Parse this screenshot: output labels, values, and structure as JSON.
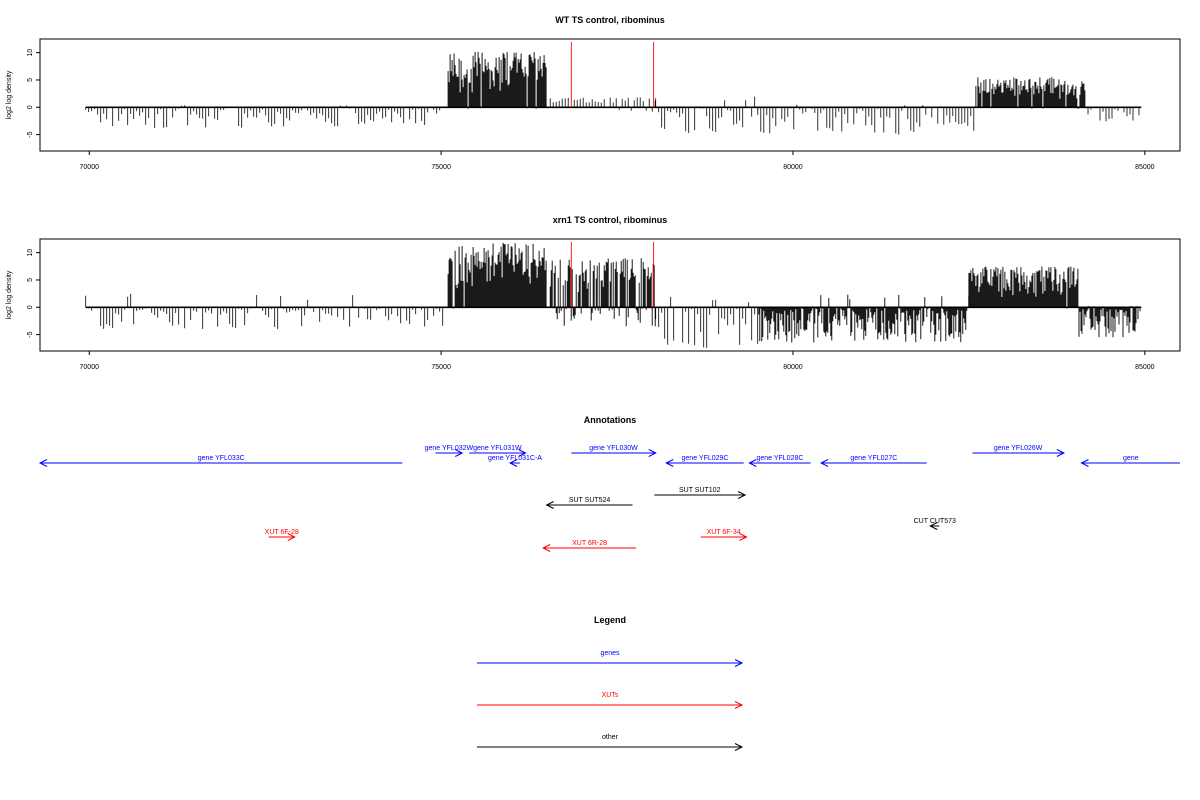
{
  "chart_data": [
    {
      "type": "bar",
      "title": "WT TS control, ribominus",
      "xlabel": "",
      "ylabel": "log2 log density",
      "xlim": [
        69300,
        85500
      ],
      "ylim": [
        -8,
        12.5
      ],
      "xticks": [
        70000,
        75000,
        80000,
        85000
      ],
      "xtick_labels": [
        "70000",
        "75000",
        "80000",
        "85000"
      ],
      "yticks": [
        10,
        5,
        0,
        -5
      ],
      "ytick_labels": [
        "10",
        "5",
        "0",
        "-5"
      ],
      "marker_lines_x": [
        76850,
        78020
      ],
      "marker_color": "#ff0000",
      "segments": [
        {
          "x0": 69950,
          "x1": 75050,
          "min": -3.8,
          "max": 0.4,
          "p_pos": 0.03,
          "dense": false
        },
        {
          "x0": 75100,
          "x1": 76500,
          "min": -0.3,
          "max": 10.2,
          "p_pos": 0.97,
          "dense": true
        },
        {
          "x0": 76550,
          "x1": 78050,
          "min": -0.8,
          "max": 1.8,
          "p_pos": 0.7,
          "dense": false
        },
        {
          "x0": 78050,
          "x1": 79500,
          "min": -5.3,
          "max": 2.0,
          "p_pos": 0.15,
          "dense": false
        },
        {
          "x0": 79500,
          "x1": 82600,
          "min": -5.0,
          "max": 0.5,
          "p_pos": 0.04,
          "dense": false
        },
        {
          "x0": 82600,
          "x1": 84150,
          "min": -0.3,
          "max": 5.5,
          "p_pos": 0.96,
          "dense": true
        },
        {
          "x0": 84150,
          "x1": 84950,
          "min": -3.0,
          "max": 0.3,
          "p_pos": 0.05,
          "dense": false
        }
      ]
    },
    {
      "type": "bar",
      "title": "xrn1 TS control, ribominus",
      "xlabel": "",
      "ylabel": "log2 log density",
      "xlim": [
        69300,
        85500
      ],
      "ylim": [
        -8,
        12.5
      ],
      "xticks": [
        70000,
        75000,
        80000,
        85000
      ],
      "xtick_labels": [
        "70000",
        "75000",
        "80000",
        "85000"
      ],
      "yticks": [
        10,
        5,
        0,
        -5
      ],
      "ytick_labels": [
        "10",
        "5",
        "0",
        "-5"
      ],
      "marker_lines_x": [
        76850,
        78020
      ],
      "marker_color": "#ff0000",
      "segments": [
        {
          "x0": 69950,
          "x1": 75050,
          "min": -4.0,
          "max": 2.5,
          "p_pos": 0.08,
          "dense": false
        },
        {
          "x0": 75100,
          "x1": 76500,
          "min": -0.3,
          "max": 11.8,
          "p_pos": 0.97,
          "dense": true
        },
        {
          "x0": 76550,
          "x1": 78050,
          "min": -3.5,
          "max": 9.0,
          "p_pos": 0.6,
          "dense": true
        },
        {
          "x0": 78050,
          "x1": 79500,
          "min": -7.5,
          "max": 2.0,
          "p_pos": 0.1,
          "dense": false
        },
        {
          "x0": 79500,
          "x1": 82500,
          "min": -6.5,
          "max": 2.5,
          "p_pos": 0.04,
          "dense": true
        },
        {
          "x0": 82500,
          "x1": 84050,
          "min": -0.3,
          "max": 7.5,
          "p_pos": 0.96,
          "dense": true
        },
        {
          "x0": 84050,
          "x1": 84950,
          "min": -5.5,
          "max": 0.3,
          "p_pos": 0.05,
          "dense": true
        }
      ]
    }
  ],
  "annotations": {
    "title": "Annotations",
    "items": [
      {
        "label": "gene YFL033C",
        "start": 69300,
        "end": 74450,
        "dir": "left",
        "row": 1,
        "color": "#0000ff"
      },
      {
        "label": "gene YFL032W",
        "start": 74920,
        "end": 75300,
        "dir": "right",
        "row": 0,
        "color": "#0000ff"
      },
      {
        "label": "gene YFL031W",
        "start": 75400,
        "end": 76200,
        "dir": "right",
        "row": 0,
        "color": "#0000ff"
      },
      {
        "label": "gene YFL031C-A",
        "start": 75980,
        "end": 76120,
        "dir": "left",
        "row": 1,
        "color": "#0000ff"
      },
      {
        "label": "gene YFL030W",
        "start": 76850,
        "end": 78050,
        "dir": "right",
        "row": 0,
        "color": "#0000ff"
      },
      {
        "label": "gene YFL029C",
        "start": 78200,
        "end": 79300,
        "dir": "left",
        "row": 1,
        "color": "#0000ff"
      },
      {
        "label": "gene YFL028C",
        "start": 79380,
        "end": 80250,
        "dir": "left",
        "row": 1,
        "color": "#0000ff"
      },
      {
        "label": "gene YFL027C",
        "start": 80400,
        "end": 81900,
        "dir": "left",
        "row": 1,
        "color": "#0000ff"
      },
      {
        "label": "gene YFL026W",
        "start": 82550,
        "end": 83850,
        "dir": "right",
        "row": 0,
        "color": "#0000ff"
      },
      {
        "label": "gene",
        "start": 84100,
        "end": 85500,
        "dir": "left",
        "row": 1,
        "color": "#0000ff"
      },
      {
        "label": "SUT SUT524",
        "start": 76500,
        "end": 77720,
        "dir": "left",
        "row": 2,
        "color": "#000000"
      },
      {
        "label": "SUT SUT102",
        "start": 78030,
        "end": 79320,
        "dir": "right",
        "row": 3,
        "color": "#000000"
      },
      {
        "label": "CUT CUT573",
        "start": 81950,
        "end": 82080,
        "dir": "left",
        "row": 4,
        "color": "#000000"
      },
      {
        "label": "XUT 6F-28",
        "start": 72550,
        "end": 72920,
        "dir": "right",
        "row": 5,
        "color": "#ff0000"
      },
      {
        "label": "XUT 6R-28",
        "start": 76450,
        "end": 77770,
        "dir": "left",
        "row": 6,
        "color": "#ff0000"
      },
      {
        "label": "XUT 6F-34",
        "start": 78690,
        "end": 79340,
        "dir": "right",
        "row": 5,
        "color": "#ff0000"
      }
    ]
  },
  "legend": {
    "title": "Legend",
    "items": [
      {
        "label": "genes",
        "color": "#0000ff"
      },
      {
        "label": "XUTs",
        "color": "#ff0000"
      },
      {
        "label": "other",
        "color": "#000000"
      }
    ]
  }
}
